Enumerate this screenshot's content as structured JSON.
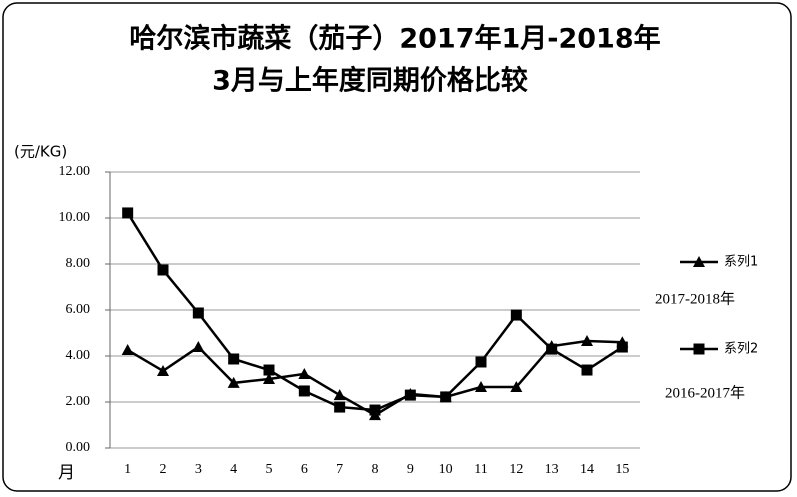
{
  "chart_data": {
    "type": "line",
    "title": [
      "哈尔滨市蔬菜（茄子）2017年1月-2018年",
      "3月与上年度同期价格比较"
    ],
    "y_label": "(元/KG)",
    "x_label": "月",
    "categories": [
      "1",
      "2",
      "3",
      "4",
      "5",
      "6",
      "7",
      "8",
      "9",
      "10",
      "11",
      "12",
      "13",
      "14",
      "15"
    ],
    "series": [
      {
        "name": "系列1",
        "color": "#000000",
        "marker": "triangle",
        "values": [
          4.26,
          3.35,
          4.39,
          2.83,
          3.0,
          3.22,
          2.3,
          1.43,
          2.35,
          2.22,
          2.65,
          2.65,
          4.43,
          4.65,
          4.6
        ]
      },
      {
        "name": "系列2",
        "color": "#000000",
        "marker": "square",
        "values": [
          10.22,
          7.74,
          5.87,
          3.87,
          3.39,
          2.48,
          1.78,
          1.65,
          2.3,
          2.22,
          3.74,
          5.78,
          4.3,
          3.39,
          4.39
        ]
      }
    ],
    "annotations": [
      "2017-2018年",
      "2016-2017年"
    ],
    "ylim": [
      0,
      12
    ],
    "yticks": [
      {
        "value": 0,
        "label": "0.00"
      },
      {
        "value": 2,
        "label": "2.00"
      },
      {
        "value": 4,
        "label": "4.00"
      },
      {
        "value": 6,
        "label": "6.00"
      },
      {
        "value": 8,
        "label": "8.00"
      },
      {
        "value": 10,
        "label": "10.00"
      },
      {
        "value": 12,
        "label": "12.00"
      }
    ],
    "grid": true
  }
}
